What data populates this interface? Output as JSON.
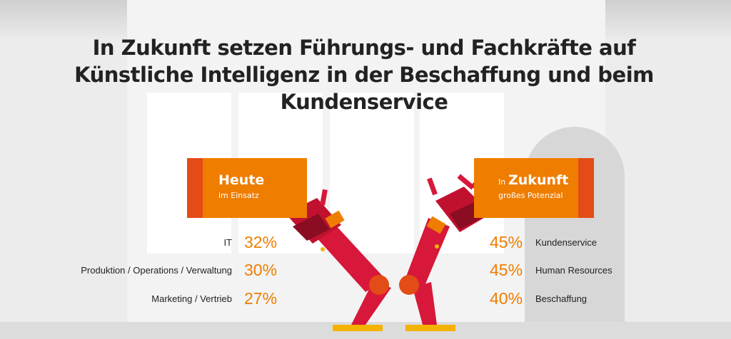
{
  "title": {
    "line1": "In Zukunft setzen Führungs- und Fachkräfte auf",
    "line2": "Künstliche Intelligenz in der Beschaffung und beim",
    "line3": "Kundenservice"
  },
  "today": {
    "heading": "Heute",
    "subheading": "im Einsatz",
    "rows": [
      {
        "label": "IT",
        "value": "32%"
      },
      {
        "label": "Produktion / Operations / Verwaltung",
        "value": "30%"
      },
      {
        "label": "Marketing / Vertrieb",
        "value": "27%"
      }
    ]
  },
  "future": {
    "prefix": "In",
    "heading": "Zukunft",
    "subheading": "großes Potenzial",
    "rows": [
      {
        "label": "Kundenservice",
        "value": "45%"
      },
      {
        "label": "Human Resources",
        "value": "45%"
      },
      {
        "label": "Beschaffung",
        "value": "40%"
      }
    ]
  },
  "colors": {
    "accent_orange": "#ef7d00",
    "accent_red_orange": "#e34c16",
    "robot_red": "#d7183a",
    "robot_dark_red": "#a0102a",
    "robot_base_yellow": "#f5b301",
    "title_text": "#222222"
  }
}
